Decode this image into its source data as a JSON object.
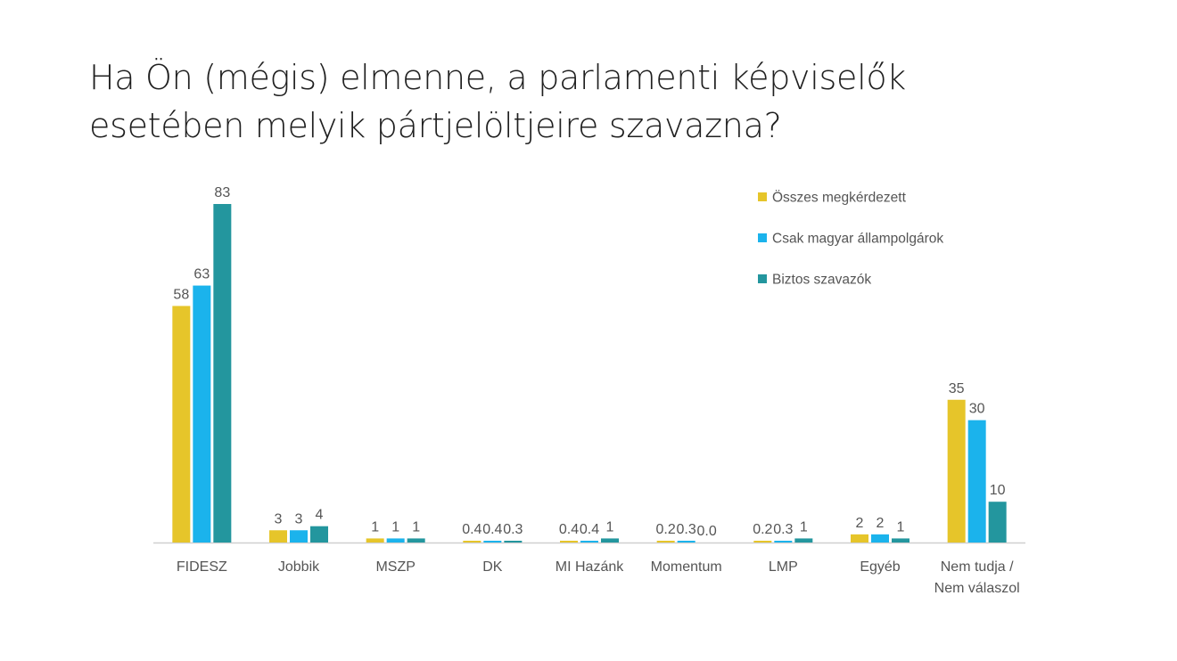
{
  "title_lines": [
    "Ha Ön (mégis) elmenne, a parlamenti képviselők",
    "esetében melyik pártjelöltjeire szavazna?"
  ],
  "chart_data": {
    "type": "bar",
    "title": "Ha Ön (mégis) elmenne, a parlamenti képviselők esetében melyik pártjelöltjeire szavazna?",
    "categories": [
      [
        "FIDESZ"
      ],
      [
        "Jobbik"
      ],
      [
        "MSZP"
      ],
      [
        "DK"
      ],
      [
        "MI Hazánk"
      ],
      [
        "Momentum"
      ],
      [
        "LMP"
      ],
      [
        "Egyéb"
      ],
      [
        "Nem tudja /",
        "Nem válaszol"
      ]
    ],
    "series": [
      {
        "name": "Összes megkérdezett",
        "color": "#E6C52A",
        "values": [
          58,
          3,
          1,
          0.4,
          0.4,
          0.2,
          0.2,
          2,
          35
        ],
        "labels": [
          "58",
          "3",
          "1",
          "0.4",
          "0.4",
          "0.2",
          "0.2",
          "2",
          "35"
        ]
      },
      {
        "name": "Csak magyar állampolgárok",
        "color": "#1BB3EC",
        "values": [
          63,
          3,
          1,
          0.4,
          0.4,
          0.3,
          0.3,
          2,
          30
        ],
        "labels": [
          "63",
          "3",
          "1",
          "0.4",
          "0.4",
          "0.3",
          "0.3",
          "2",
          "30"
        ]
      },
      {
        "name": "Biztos szavazók",
        "color": "#23969E",
        "values": [
          83,
          4,
          1,
          0.3,
          1,
          0.0,
          1,
          1,
          10
        ],
        "labels": [
          "83",
          "4",
          "1",
          "0.3",
          "1",
          "0.0",
          "1",
          "1",
          "10"
        ]
      }
    ],
    "ylim": [
      0,
      85
    ],
    "xlabel": "",
    "ylabel": "",
    "grid": false,
    "legend_position": "top-right"
  }
}
